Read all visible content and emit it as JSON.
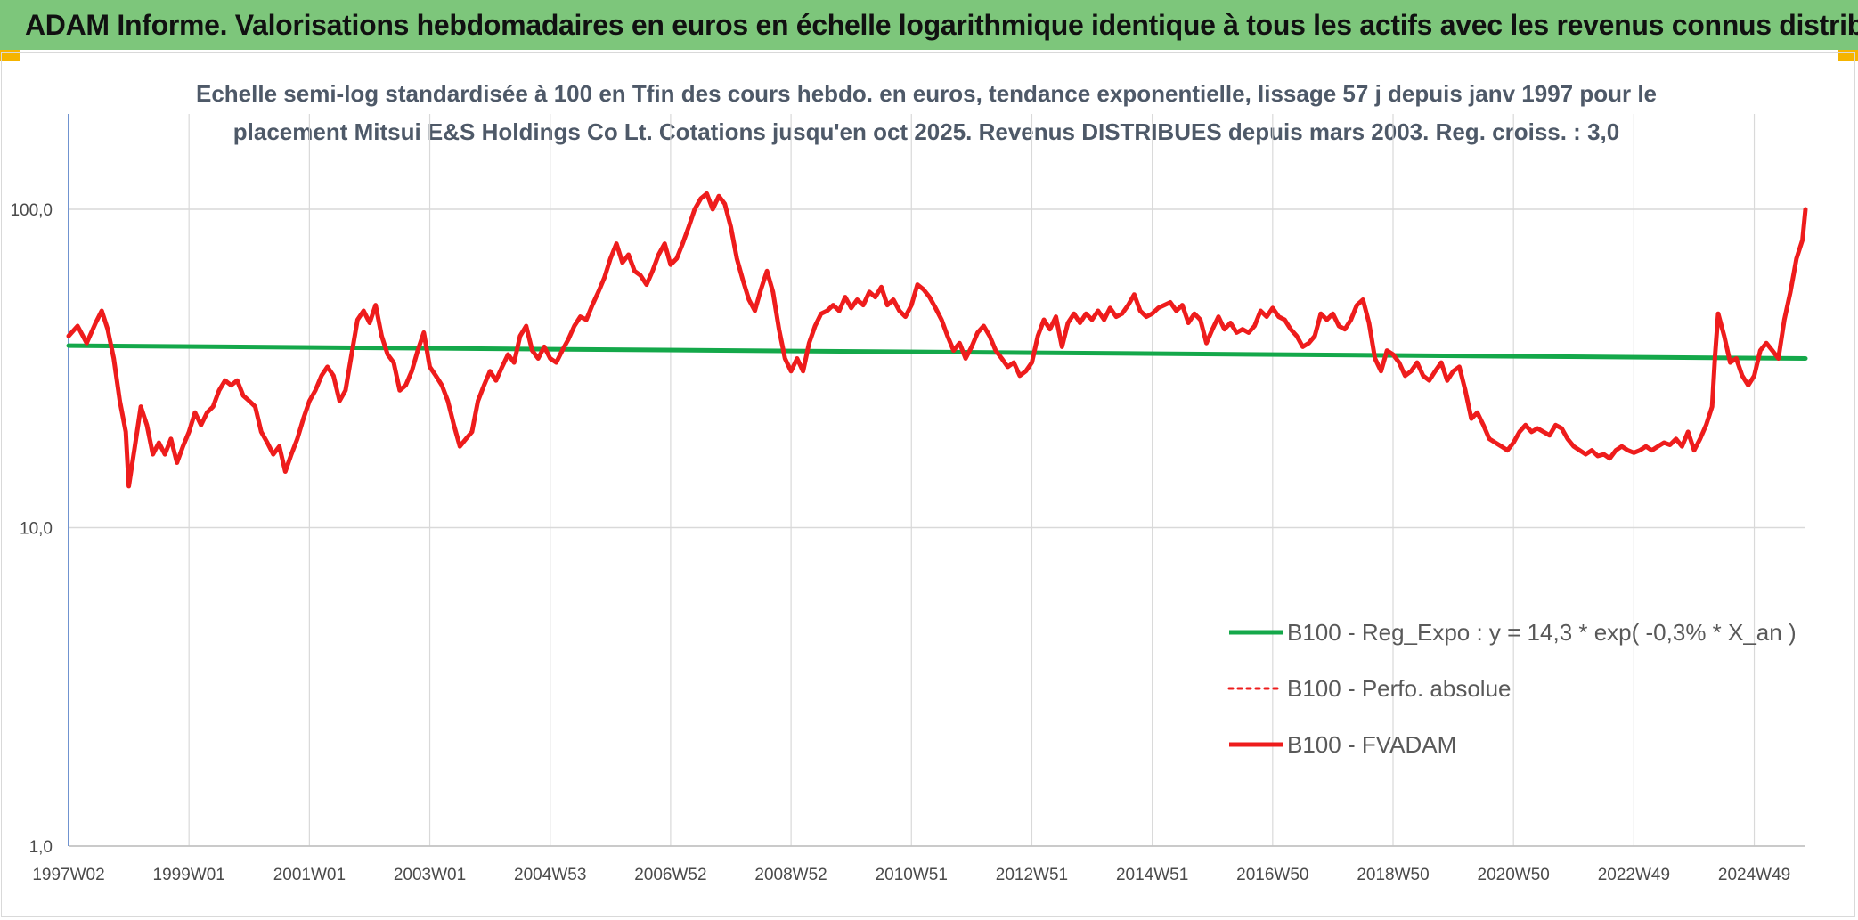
{
  "header": {
    "title": "ADAM Informe. Valorisations hebdomadaires en euros en échelle logarithmique identique à tous les actifs avec les revenus connus distribués"
  },
  "colors": {
    "banner": "#7dc67b",
    "fvadam": "#ee1c1c",
    "regression": "#14a84a",
    "grid": "#d9d9d9"
  },
  "chart_data": {
    "type": "line",
    "title_line1": "Echelle semi-log standardisée à 100 en Tfin des cours hebdo. en euros, tendance exponentielle, lissage 57 j depuis janv 1997 pour le",
    "title_line2": "placement Mitsui E&S Holdings Co Lt. Cotations jusqu'en oct 2025. Revenus DISTRIBUES depuis mars 2003. Reg. croiss. : 3,0",
    "y_scale": "log",
    "ylim": [
      1,
      200
    ],
    "y_ticks": [
      {
        "value": 1,
        "label": "1,0"
      },
      {
        "value": 10,
        "label": "10,0"
      },
      {
        "value": 100,
        "label": "100,0"
      }
    ],
    "xlim": [
      1997.0,
      2025.85
    ],
    "x_ticks": [
      {
        "x": 1997.0,
        "label": "1997W02"
      },
      {
        "x": 1999.0,
        "label": "1999W01"
      },
      {
        "x": 2001.0,
        "label": "2001W01"
      },
      {
        "x": 2003.0,
        "label": "2003W01"
      },
      {
        "x": 2005.0,
        "label": "2004W53"
      },
      {
        "x": 2007.0,
        "label": "2006W52"
      },
      {
        "x": 2009.0,
        "label": "2008W52"
      },
      {
        "x": 2011.0,
        "label": "2010W51"
      },
      {
        "x": 2013.0,
        "label": "2012W51"
      },
      {
        "x": 2015.0,
        "label": "2014W51"
      },
      {
        "x": 2017.0,
        "label": "2016W50"
      },
      {
        "x": 2019.0,
        "label": "2018W50"
      },
      {
        "x": 2021.0,
        "label": "2020W50"
      },
      {
        "x": 2023.0,
        "label": "2022W49"
      },
      {
        "x": 2025.0,
        "label": "2024W49"
      }
    ],
    "legend_position": "bottom-right",
    "series": [
      {
        "name": "B100 - Reg_Expo : y = 14,3 * exp( -0,3% *  X_an )",
        "style": "solid",
        "points": [
          [
            1997.0,
            37.3
          ],
          [
            2025.85,
            34.0
          ]
        ]
      },
      {
        "name": "B100 - Perfo. absolue",
        "style": "dotted",
        "points": []
      },
      {
        "name": "B100 - FVADAM",
        "style": "solid",
        "points": [
          [
            1997.0,
            40
          ],
          [
            1997.15,
            43
          ],
          [
            1997.3,
            38
          ],
          [
            1997.45,
            44
          ],
          [
            1997.55,
            48
          ],
          [
            1997.65,
            42
          ],
          [
            1997.75,
            34
          ],
          [
            1997.85,
            25
          ],
          [
            1997.95,
            20
          ],
          [
            1998.0,
            13.5
          ],
          [
            1998.1,
            18
          ],
          [
            1998.2,
            24
          ],
          [
            1998.3,
            21
          ],
          [
            1998.4,
            17
          ],
          [
            1998.5,
            18.5
          ],
          [
            1998.6,
            17
          ],
          [
            1998.7,
            19
          ],
          [
            1998.8,
            16
          ],
          [
            1998.9,
            18
          ],
          [
            1999.0,
            20
          ],
          [
            1999.1,
            23
          ],
          [
            1999.2,
            21
          ],
          [
            1999.3,
            23
          ],
          [
            1999.4,
            24
          ],
          [
            1999.5,
            27
          ],
          [
            1999.6,
            29
          ],
          [
            1999.7,
            28
          ],
          [
            1999.8,
            29
          ],
          [
            1999.9,
            26
          ],
          [
            2000.0,
            25
          ],
          [
            2000.1,
            24
          ],
          [
            2000.2,
            20
          ],
          [
            2000.3,
            18.5
          ],
          [
            2000.4,
            17
          ],
          [
            2000.5,
            18
          ],
          [
            2000.6,
            15
          ],
          [
            2000.7,
            17
          ],
          [
            2000.8,
            19
          ],
          [
            2000.9,
            22
          ],
          [
            2001.0,
            25
          ],
          [
            2001.1,
            27
          ],
          [
            2001.2,
            30
          ],
          [
            2001.3,
            32
          ],
          [
            2001.4,
            30
          ],
          [
            2001.5,
            25
          ],
          [
            2001.6,
            27
          ],
          [
            2001.7,
            35
          ],
          [
            2001.8,
            45
          ],
          [
            2001.9,
            48
          ],
          [
            2002.0,
            44
          ],
          [
            2002.1,
            50
          ],
          [
            2002.2,
            40
          ],
          [
            2002.3,
            35
          ],
          [
            2002.4,
            33
          ],
          [
            2002.5,
            27
          ],
          [
            2002.6,
            28
          ],
          [
            2002.7,
            31
          ],
          [
            2002.8,
            36
          ],
          [
            2002.9,
            41
          ],
          [
            2003.0,
            32
          ],
          [
            2003.1,
            30
          ],
          [
            2003.2,
            28
          ],
          [
            2003.3,
            25
          ],
          [
            2003.4,
            21
          ],
          [
            2003.5,
            18
          ],
          [
            2003.6,
            19
          ],
          [
            2003.7,
            20
          ],
          [
            2003.8,
            25
          ],
          [
            2003.9,
            28
          ],
          [
            2004.0,
            31
          ],
          [
            2004.1,
            29
          ],
          [
            2004.2,
            32
          ],
          [
            2004.3,
            35
          ],
          [
            2004.4,
            33
          ],
          [
            2004.5,
            40
          ],
          [
            2004.6,
            43
          ],
          [
            2004.7,
            36
          ],
          [
            2004.8,
            34
          ],
          [
            2004.9,
            37
          ],
          [
            2005.0,
            34
          ],
          [
            2005.1,
            33
          ],
          [
            2005.2,
            36
          ],
          [
            2005.3,
            39
          ],
          [
            2005.4,
            43
          ],
          [
            2005.5,
            46
          ],
          [
            2005.6,
            45
          ],
          [
            2005.7,
            50
          ],
          [
            2005.8,
            55
          ],
          [
            2005.9,
            61
          ],
          [
            2006.0,
            70
          ],
          [
            2006.1,
            78
          ],
          [
            2006.2,
            68
          ],
          [
            2006.3,
            72
          ],
          [
            2006.4,
            64
          ],
          [
            2006.5,
            62
          ],
          [
            2006.6,
            58
          ],
          [
            2006.7,
            64
          ],
          [
            2006.8,
            72
          ],
          [
            2006.9,
            78
          ],
          [
            2007.0,
            67
          ],
          [
            2007.1,
            70
          ],
          [
            2007.2,
            78
          ],
          [
            2007.3,
            88
          ],
          [
            2007.4,
            100
          ],
          [
            2007.5,
            108
          ],
          [
            2007.6,
            112
          ],
          [
            2007.7,
            100
          ],
          [
            2007.8,
            110
          ],
          [
            2007.9,
            104
          ],
          [
            2008.0,
            88
          ],
          [
            2008.1,
            70
          ],
          [
            2008.2,
            60
          ],
          [
            2008.3,
            52
          ],
          [
            2008.4,
            48
          ],
          [
            2008.5,
            56
          ],
          [
            2008.6,
            64
          ],
          [
            2008.7,
            55
          ],
          [
            2008.8,
            42
          ],
          [
            2008.9,
            34
          ],
          [
            2009.0,
            31
          ],
          [
            2009.1,
            34
          ],
          [
            2009.2,
            31
          ],
          [
            2009.3,
            38
          ],
          [
            2009.4,
            43
          ],
          [
            2009.5,
            47
          ],
          [
            2009.6,
            48
          ],
          [
            2009.7,
            50
          ],
          [
            2009.8,
            48
          ],
          [
            2009.9,
            53
          ],
          [
            2010.0,
            49
          ],
          [
            2010.1,
            52
          ],
          [
            2010.2,
            50
          ],
          [
            2010.3,
            55
          ],
          [
            2010.4,
            53
          ],
          [
            2010.5,
            57
          ],
          [
            2010.6,
            50
          ],
          [
            2010.7,
            52
          ],
          [
            2010.8,
            48
          ],
          [
            2010.9,
            46
          ],
          [
            2011.0,
            50
          ],
          [
            2011.1,
            58
          ],
          [
            2011.2,
            56
          ],
          [
            2011.3,
            53
          ],
          [
            2011.4,
            49
          ],
          [
            2011.5,
            45
          ],
          [
            2011.6,
            40
          ],
          [
            2011.7,
            36
          ],
          [
            2011.8,
            38
          ],
          [
            2011.9,
            34
          ],
          [
            2012.0,
            37
          ],
          [
            2012.1,
            41
          ],
          [
            2012.2,
            43
          ],
          [
            2012.3,
            40
          ],
          [
            2012.4,
            36
          ],
          [
            2012.5,
            34
          ],
          [
            2012.6,
            32
          ],
          [
            2012.7,
            33
          ],
          [
            2012.8,
            30
          ],
          [
            2012.9,
            31
          ],
          [
            2013.0,
            33
          ],
          [
            2013.1,
            40
          ],
          [
            2013.2,
            45
          ],
          [
            2013.3,
            42
          ],
          [
            2013.4,
            46
          ],
          [
            2013.5,
            37
          ],
          [
            2013.6,
            44
          ],
          [
            2013.7,
            47
          ],
          [
            2013.8,
            44
          ],
          [
            2013.9,
            47
          ],
          [
            2014.0,
            45
          ],
          [
            2014.1,
            48
          ],
          [
            2014.2,
            45
          ],
          [
            2014.3,
            49
          ],
          [
            2014.4,
            46
          ],
          [
            2014.5,
            47
          ],
          [
            2014.6,
            50
          ],
          [
            2014.7,
            54
          ],
          [
            2014.8,
            48
          ],
          [
            2014.9,
            46
          ],
          [
            2015.0,
            47
          ],
          [
            2015.1,
            49
          ],
          [
            2015.2,
            50
          ],
          [
            2015.3,
            51
          ],
          [
            2015.4,
            48
          ],
          [
            2015.5,
            50
          ],
          [
            2015.6,
            44
          ],
          [
            2015.7,
            47
          ],
          [
            2015.8,
            45
          ],
          [
            2015.9,
            38
          ],
          [
            2016.0,
            42
          ],
          [
            2016.1,
            46
          ],
          [
            2016.2,
            42
          ],
          [
            2016.3,
            44
          ],
          [
            2016.4,
            41
          ],
          [
            2016.5,
            42
          ],
          [
            2016.6,
            41
          ],
          [
            2016.7,
            43
          ],
          [
            2016.8,
            48
          ],
          [
            2016.9,
            46
          ],
          [
            2017.0,
            49
          ],
          [
            2017.1,
            46
          ],
          [
            2017.2,
            45
          ],
          [
            2017.3,
            42
          ],
          [
            2017.4,
            40
          ],
          [
            2017.5,
            37
          ],
          [
            2017.6,
            38
          ],
          [
            2017.7,
            40
          ],
          [
            2017.8,
            47
          ],
          [
            2017.9,
            45
          ],
          [
            2018.0,
            47
          ],
          [
            2018.1,
            43
          ],
          [
            2018.2,
            42
          ],
          [
            2018.3,
            45
          ],
          [
            2018.4,
            50
          ],
          [
            2018.5,
            52
          ],
          [
            2018.6,
            44
          ],
          [
            2018.7,
            34
          ],
          [
            2018.8,
            31
          ],
          [
            2018.9,
            36
          ],
          [
            2019.0,
            35
          ],
          [
            2019.1,
            33
          ],
          [
            2019.2,
            30
          ],
          [
            2019.3,
            31
          ],
          [
            2019.4,
            33
          ],
          [
            2019.5,
            30
          ],
          [
            2019.6,
            29
          ],
          [
            2019.7,
            31
          ],
          [
            2019.8,
            33
          ],
          [
            2019.9,
            29
          ],
          [
            2020.0,
            31
          ],
          [
            2020.1,
            32
          ],
          [
            2020.2,
            27
          ],
          [
            2020.3,
            22
          ],
          [
            2020.4,
            23
          ],
          [
            2020.5,
            21
          ],
          [
            2020.6,
            19
          ],
          [
            2020.7,
            18.5
          ],
          [
            2020.8,
            18
          ],
          [
            2020.9,
            17.5
          ],
          [
            2021.0,
            18.5
          ],
          [
            2021.1,
            20
          ],
          [
            2021.2,
            21
          ],
          [
            2021.3,
            20
          ],
          [
            2021.4,
            20.5
          ],
          [
            2021.5,
            20
          ],
          [
            2021.6,
            19.5
          ],
          [
            2021.7,
            21
          ],
          [
            2021.8,
            20.5
          ],
          [
            2021.9,
            19
          ],
          [
            2022.0,
            18
          ],
          [
            2022.1,
            17.5
          ],
          [
            2022.2,
            17
          ],
          [
            2022.3,
            17.5
          ],
          [
            2022.4,
            16.8
          ],
          [
            2022.5,
            17
          ],
          [
            2022.6,
            16.5
          ],
          [
            2022.7,
            17.5
          ],
          [
            2022.8,
            18
          ],
          [
            2022.9,
            17.5
          ],
          [
            2023.0,
            17.2
          ],
          [
            2023.1,
            17.5
          ],
          [
            2023.2,
            18
          ],
          [
            2023.3,
            17.5
          ],
          [
            2023.4,
            18
          ],
          [
            2023.5,
            18.5
          ],
          [
            2023.6,
            18.2
          ],
          [
            2023.7,
            19
          ],
          [
            2023.8,
            18
          ],
          [
            2023.9,
            20
          ],
          [
            2024.0,
            17.5
          ],
          [
            2024.1,
            19
          ],
          [
            2024.2,
            21
          ],
          [
            2024.3,
            24
          ],
          [
            2024.35,
            35
          ],
          [
            2024.4,
            47
          ],
          [
            2024.5,
            40
          ],
          [
            2024.6,
            33
          ],
          [
            2024.7,
            34
          ],
          [
            2024.8,
            30
          ],
          [
            2024.9,
            28
          ],
          [
            2025.0,
            30
          ],
          [
            2025.1,
            36
          ],
          [
            2025.2,
            38
          ],
          [
            2025.3,
            36
          ],
          [
            2025.4,
            34
          ],
          [
            2025.5,
            45
          ],
          [
            2025.6,
            55
          ],
          [
            2025.7,
            70
          ],
          [
            2025.8,
            80
          ],
          [
            2025.85,
            100
          ]
        ]
      }
    ]
  }
}
